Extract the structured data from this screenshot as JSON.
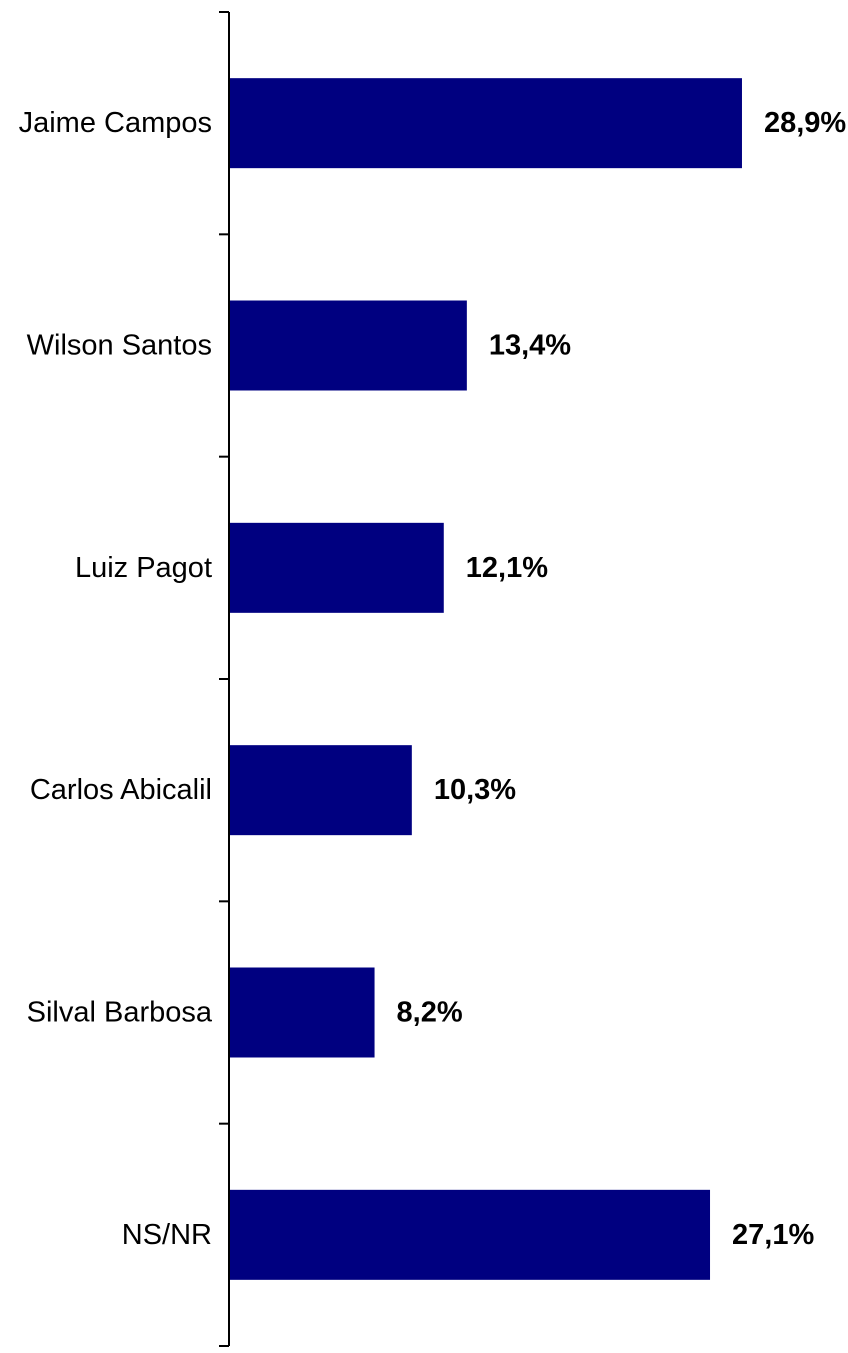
{
  "chart_data": {
    "type": "bar",
    "orientation": "horizontal",
    "categories": [
      "Jaime Campos",
      "Wilson Santos",
      "Luiz Pagot",
      "Carlos Abicalil",
      "Silval Barbosa",
      "NS/NR"
    ],
    "values": [
      28.9,
      13.4,
      12.1,
      10.3,
      8.2,
      27.1
    ],
    "value_labels": [
      "28,9%",
      "13,4%",
      "12,1%",
      "10,3%",
      "8,2%",
      "27,1%"
    ],
    "title": "",
    "xlabel": "",
    "ylabel": "",
    "xlim": [
      0,
      35
    ],
    "grid": false,
    "legend": "none",
    "bar_color": "#000080"
  }
}
